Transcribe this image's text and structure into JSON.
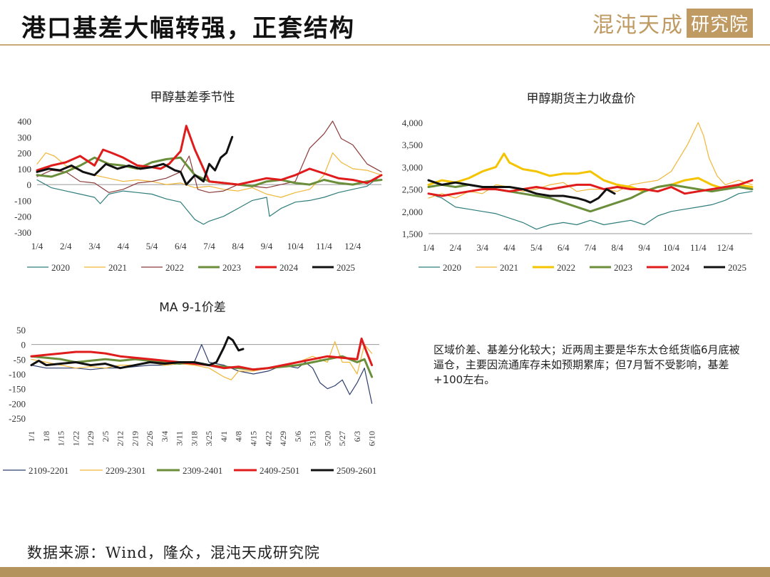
{
  "header": {
    "title": "港口基差大幅转强，正套结构",
    "logo_text": "混沌天成",
    "logo_boxed": "研究院"
  },
  "note": "区域价差、基差分化较大；近两周主要是华东太仓纸货临6月底被逼仓，主要因流通库存未如预期累库；但7月暂不受影响，基差+100左右。",
  "source": "数据来源：Wind，隆众，混沌天成研究院",
  "chart_data": [
    {
      "id": "basis",
      "type": "line",
      "title": "甲醇基差季节性",
      "x_ticks": [
        "1/4",
        "2/4",
        "3/4",
        "4/4",
        "5/4",
        "6/4",
        "7/4",
        "8/4",
        "9/4",
        "10/4",
        "11/4",
        "12/4"
      ],
      "ylim": [
        -300,
        400
      ],
      "y_ticks": [
        400,
        300,
        200,
        100,
        0,
        -100,
        -200,
        -300
      ],
      "y_tick_labels": [
        "400",
        "300",
        "200",
        "100",
        "0",
        "-100",
        "-200",
        "-300"
      ],
      "xlim": [
        0,
        12
      ],
      "grid": false,
      "legend_position": "bottom",
      "series": [
        {
          "name": "2020",
          "color": "#2e7d7b",
          "width": 1.2,
          "x": [
            0,
            0.5,
            1,
            1.5,
            2,
            2.2,
            2.5,
            3,
            3.5,
            4,
            4.5,
            5,
            5.5,
            5.8,
            6,
            6.5,
            7,
            7.5,
            8,
            8.1,
            8.5,
            9,
            9.5,
            10,
            10.5,
            11,
            11.5,
            12
          ],
          "y": [
            30,
            -20,
            -40,
            -60,
            -80,
            -120,
            -60,
            -40,
            -50,
            -60,
            -90,
            -110,
            -220,
            -250,
            -230,
            -200,
            -150,
            -100,
            -80,
            -200,
            -150,
            -110,
            -100,
            -80,
            -50,
            -30,
            -10,
            60
          ]
        },
        {
          "name": "2021",
          "color": "#f0b638",
          "width": 1.2,
          "x": [
            0,
            0.3,
            0.6,
            1,
            1.5,
            2,
            2.5,
            3,
            3.5,
            4,
            4.5,
            5,
            5.5,
            6,
            6.5,
            7,
            7.5,
            8,
            8.5,
            9,
            9.5,
            10,
            10.3,
            10.6,
            11,
            11.5,
            12
          ],
          "y": [
            130,
            200,
            180,
            120,
            90,
            60,
            40,
            20,
            30,
            20,
            0,
            10,
            -20,
            -10,
            -30,
            -40,
            -20,
            -60,
            -80,
            -50,
            -30,
            60,
            200,
            140,
            100,
            90,
            60
          ]
        },
        {
          "name": "2022",
          "color": "#8b3a3a",
          "width": 1.2,
          "x": [
            0,
            0.5,
            1,
            1.5,
            2,
            2.5,
            3,
            3.5,
            4,
            4.5,
            5,
            5.3,
            5.6,
            6,
            6.5,
            7,
            7.5,
            8,
            8.5,
            9,
            9.5,
            10,
            10.3,
            10.6,
            11,
            11.5,
            12
          ],
          "y": [
            50,
            90,
            80,
            20,
            10,
            -50,
            -30,
            10,
            20,
            40,
            80,
            180,
            -30,
            -50,
            -40,
            0,
            -10,
            -20,
            0,
            20,
            230,
            320,
            400,
            290,
            250,
            130,
            80
          ]
        },
        {
          "name": "2023",
          "color": "#6b8e3a",
          "width": 3,
          "x": [
            0,
            0.5,
            1,
            1.5,
            2,
            2.5,
            3,
            3.5,
            4,
            4.5,
            5,
            5.5,
            6,
            6.5,
            7,
            7.5,
            8,
            8.5,
            9,
            9.5,
            10,
            10.5,
            11,
            11.5,
            12
          ],
          "y": [
            60,
            50,
            80,
            120,
            170,
            130,
            120,
            100,
            140,
            160,
            170,
            60,
            20,
            10,
            0,
            -10,
            20,
            30,
            10,
            0,
            30,
            10,
            0,
            20,
            30
          ]
        },
        {
          "name": "2024",
          "color": "#e01b1b",
          "width": 3,
          "x": [
            0,
            0.5,
            1,
            1.5,
            2,
            2.3,
            2.6,
            3,
            3.5,
            4,
            4.3,
            4.6,
            5,
            5.2,
            5.5,
            6,
            6.5,
            7,
            7.5,
            8,
            8.5,
            9,
            9.5,
            10,
            10.5,
            11,
            11.5,
            12
          ],
          "y": [
            90,
            120,
            140,
            180,
            120,
            220,
            200,
            170,
            120,
            110,
            100,
            130,
            210,
            370,
            220,
            20,
            10,
            0,
            20,
            40,
            30,
            60,
            100,
            70,
            40,
            30,
            10,
            60
          ]
        },
        {
          "name": "2025",
          "color": "#111111",
          "width": 3,
          "x": [
            0,
            0.4,
            0.8,
            1.2,
            1.6,
            2,
            2.4,
            2.8,
            3.2,
            3.6,
            4,
            4.4,
            4.8,
            5,
            5.2,
            5.5,
            5.8,
            6,
            6.2,
            6.4,
            6.6,
            6.8
          ],
          "y": [
            80,
            100,
            90,
            120,
            80,
            60,
            130,
            100,
            120,
            100,
            110,
            130,
            90,
            80,
            0,
            60,
            20,
            130,
            90,
            170,
            200,
            300
          ]
        }
      ]
    },
    {
      "id": "futures",
      "type": "line",
      "title": "甲醇期货主力收盘价",
      "x_ticks": [
        "1/4",
        "2/4",
        "3/4",
        "4/4",
        "5/4",
        "6/4",
        "7/4",
        "8/4",
        "9/4",
        "10/4",
        "11/4",
        "12/4"
      ],
      "ylim": [
        1500,
        4000
      ],
      "y_ticks": [
        4000,
        3500,
        3000,
        2500,
        2000,
        1500
      ],
      "y_tick_labels": [
        "4,000",
        "3,500",
        "3,000",
        "2,500",
        "2,000",
        "1,500"
      ],
      "xlim": [
        0,
        12
      ],
      "grid": false,
      "legend_position": "bottom",
      "series": [
        {
          "name": "2020",
          "color": "#2e7d7b",
          "width": 1.2,
          "x": [
            0,
            0.5,
            1,
            1.5,
            2,
            2.5,
            3,
            3.5,
            4,
            4.5,
            5,
            5.5,
            6,
            6.5,
            7,
            7.5,
            8,
            8.5,
            9,
            9.5,
            10,
            10.5,
            11,
            11.5,
            12
          ],
          "y": [
            2400,
            2300,
            2100,
            2050,
            2000,
            1950,
            1850,
            1750,
            1600,
            1700,
            1750,
            1700,
            1800,
            1700,
            1750,
            1800,
            1700,
            1900,
            2000,
            2050,
            2100,
            2150,
            2250,
            2400,
            2450
          ]
        },
        {
          "name": "2021",
          "color": "#f0b638",
          "width": 1.2,
          "x": [
            0,
            0.5,
            1,
            1.5,
            2,
            2.5,
            3,
            3.5,
            4,
            4.5,
            5,
            5.5,
            6,
            6.5,
            7,
            7.5,
            8,
            8.5,
            9,
            9.3,
            9.6,
            10,
            10.2,
            10.4,
            10.7,
            11,
            11.5,
            12
          ],
          "y": [
            2300,
            2400,
            2300,
            2450,
            2400,
            2600,
            2550,
            2450,
            2500,
            2600,
            2650,
            2450,
            2500,
            2500,
            2450,
            2600,
            2650,
            2700,
            2900,
            3200,
            3500,
            4000,
            3700,
            3200,
            2800,
            2600,
            2700,
            2600
          ]
        },
        {
          "name": "2022",
          "color": "#f5c400",
          "width": 3,
          "x": [
            0,
            0.5,
            1,
            1.5,
            2,
            2.5,
            2.8,
            3,
            3.5,
            4,
            4.5,
            5,
            5.5,
            6,
            6.5,
            7,
            7.5,
            8,
            8.5,
            9,
            9.5,
            10,
            10.5,
            11,
            11.5,
            12
          ],
          "y": [
            2600,
            2700,
            2650,
            2750,
            2900,
            3000,
            3300,
            3100,
            2950,
            2900,
            2800,
            2850,
            2850,
            2900,
            2700,
            2600,
            2550,
            2450,
            2550,
            2600,
            2700,
            2750,
            2600,
            2500,
            2600,
            2550
          ]
        },
        {
          "name": "2023",
          "color": "#6b8e3a",
          "width": 3,
          "x": [
            0,
            0.5,
            1,
            1.5,
            2,
            2.5,
            3,
            3.5,
            4,
            4.5,
            5,
            5.5,
            6,
            6.5,
            7,
            7.5,
            8,
            8.5,
            9,
            9.5,
            10,
            10.5,
            11,
            11.5,
            12
          ],
          "y": [
            2550,
            2600,
            2550,
            2600,
            2550,
            2500,
            2450,
            2400,
            2350,
            2300,
            2200,
            2100,
            2000,
            2100,
            2200,
            2300,
            2450,
            2550,
            2600,
            2550,
            2500,
            2450,
            2500,
            2550,
            2500
          ]
        },
        {
          "name": "2024",
          "color": "#e01b1b",
          "width": 3,
          "x": [
            0,
            0.5,
            1,
            1.5,
            2,
            2.5,
            3,
            3.5,
            4,
            4.5,
            5,
            5.5,
            6,
            6.5,
            7,
            7.5,
            8,
            8.5,
            9,
            9.5,
            10,
            10.5,
            11,
            11.5,
            12
          ],
          "y": [
            2400,
            2350,
            2400,
            2450,
            2500,
            2500,
            2450,
            2500,
            2550,
            2500,
            2550,
            2600,
            2600,
            2500,
            2550,
            2500,
            2500,
            2450,
            2550,
            2400,
            2450,
            2500,
            2550,
            2600,
            2700
          ]
        },
        {
          "name": "2025",
          "color": "#111111",
          "width": 3,
          "x": [
            0,
            0.5,
            1,
            1.5,
            2,
            2.5,
            3,
            3.5,
            4,
            4.5,
            5,
            5.5,
            5.8,
            6,
            6.3,
            6.6,
            6.9
          ],
          "y": [
            2700,
            2600,
            2650,
            2600,
            2550,
            2550,
            2550,
            2500,
            2400,
            2350,
            2350,
            2300,
            2250,
            2200,
            2300,
            2500,
            2400
          ]
        }
      ]
    },
    {
      "id": "ma-spread",
      "type": "line",
      "title": "MA 9-1价差",
      "x_ticks": [
        "1/1",
        "1/8",
        "1/15",
        "1/22",
        "1/29",
        "2/5",
        "2/12",
        "2/19",
        "2/26",
        "3/4",
        "3/11",
        "3/18",
        "3/25",
        "4/1",
        "4/8",
        "4/15",
        "4/22",
        "4/29",
        "5/6",
        "5/13",
        "5/20",
        "5/27",
        "6/3",
        "6/10"
      ],
      "ylim": [
        -250,
        50
      ],
      "y_ticks": [
        50,
        0,
        -50,
        -100,
        -150,
        -200,
        -250
      ],
      "y_tick_labels": [
        "50",
        "0",
        "-50",
        "-100",
        "-150",
        "-200",
        "-250"
      ],
      "xlim": [
        0,
        23.5
      ],
      "grid": false,
      "legend_position": "bottom",
      "series": [
        {
          "name": "2109-2201",
          "color": "#2f3f6f",
          "width": 1.2,
          "x": [
            0,
            1,
            2,
            3,
            4,
            5,
            6,
            7,
            8,
            9,
            10,
            11,
            11.5,
            12,
            13,
            14,
            15,
            16,
            17,
            18,
            18.5,
            19,
            19.5,
            20,
            20.5,
            21,
            21.5,
            22,
            22.5,
            23
          ],
          "y": [
            -70,
            -80,
            -80,
            -80,
            -85,
            -80,
            -80,
            -75,
            -70,
            -70,
            -65,
            -60,
            0,
            -60,
            -70,
            -90,
            -100,
            -90,
            -70,
            -80,
            -60,
            -80,
            -130,
            -150,
            -140,
            -120,
            -170,
            -130,
            -80,
            -200
          ]
        },
        {
          "name": "2209-2301",
          "color": "#f0b638",
          "width": 1.2,
          "x": [
            0,
            1,
            2,
            3,
            4,
            5,
            6,
            7,
            8,
            9,
            10,
            11,
            12,
            13,
            13.5,
            14,
            15,
            16,
            17,
            18,
            19,
            20,
            20.5,
            21,
            21.5,
            22,
            22.5,
            23
          ],
          "y": [
            -50,
            -60,
            -70,
            -80,
            -75,
            -80,
            -70,
            -70,
            -60,
            -70,
            -65,
            -70,
            -80,
            -110,
            -120,
            -90,
            -90,
            -80,
            -70,
            -60,
            -40,
            -60,
            10,
            -60,
            -60,
            -100,
            0,
            -30
          ]
        },
        {
          "name": "2309-2401",
          "color": "#6b8e3a",
          "width": 3,
          "x": [
            0,
            1,
            2,
            3,
            4,
            5,
            6,
            7,
            8,
            9,
            10,
            11,
            12,
            13,
            14,
            15,
            16,
            17,
            18,
            19,
            20,
            21,
            22,
            22.5,
            23
          ],
          "y": [
            -40,
            -45,
            -50,
            -60,
            -55,
            -50,
            -55,
            -50,
            -55,
            -60,
            -65,
            -60,
            -70,
            -75,
            -80,
            -85,
            -80,
            -75,
            -70,
            -60,
            -50,
            -40,
            -60,
            -50,
            -110
          ]
        },
        {
          "name": "2409-2501",
          "color": "#e01b1b",
          "width": 3,
          "x": [
            0,
            1,
            2,
            3,
            4,
            5,
            6,
            7,
            8,
            9,
            10,
            11,
            12,
            13,
            14,
            15,
            16,
            17,
            18,
            19,
            20,
            21,
            22,
            22.3,
            22.6,
            23
          ],
          "y": [
            -40,
            -35,
            -30,
            -25,
            -25,
            -30,
            -40,
            -45,
            -50,
            -55,
            -60,
            -65,
            -70,
            -80,
            -75,
            -85,
            -80,
            -70,
            -60,
            -50,
            -40,
            -45,
            -50,
            20,
            -20,
            -70
          ]
        },
        {
          "name": "2509-2601",
          "color": "#111111",
          "width": 3,
          "x": [
            0,
            0.5,
            1,
            2,
            3,
            4,
            5,
            6,
            7,
            8,
            9,
            10,
            11,
            12,
            12.5,
            13,
            13.3,
            13.6,
            14,
            14.3
          ],
          "y": [
            -70,
            -55,
            -70,
            -65,
            -60,
            -70,
            -65,
            -80,
            -70,
            -60,
            -65,
            -60,
            -60,
            -70,
            -60,
            -10,
            25,
            15,
            -20,
            -15
          ]
        }
      ]
    }
  ]
}
